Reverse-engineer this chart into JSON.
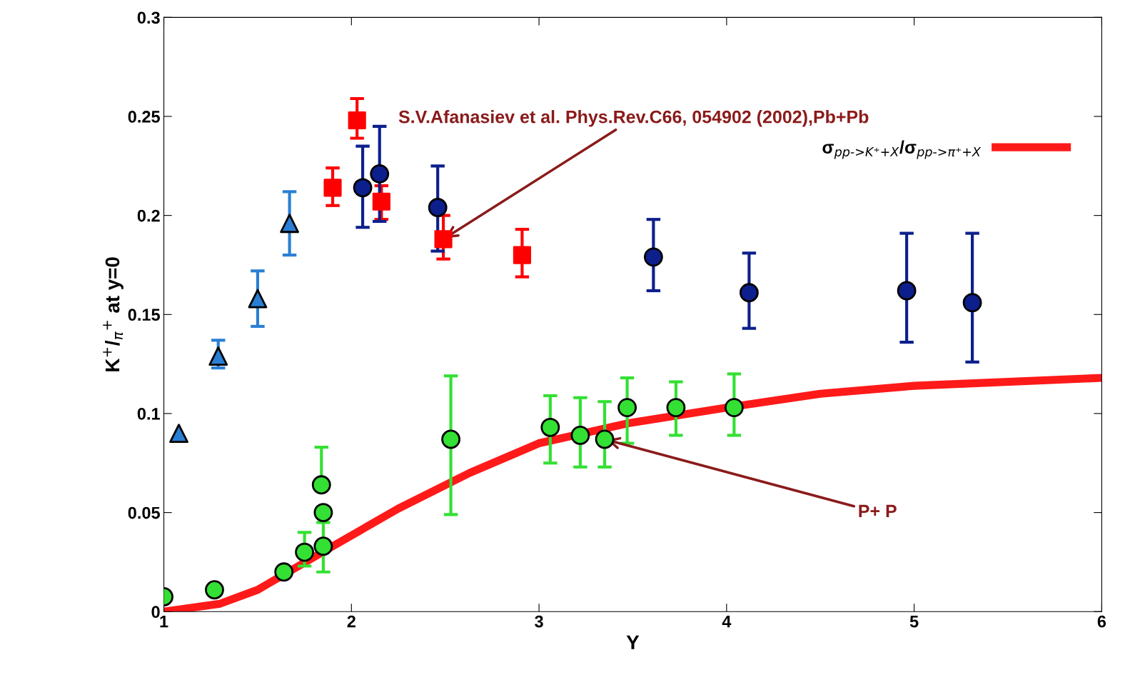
{
  "chart_data": {
    "type": "scatter",
    "xlabel": "Y",
    "ylabel": "K$^{+}$/$_{π}$$^{+}$ at y=0",
    "xlim": [
      1,
      6
    ],
    "xticks": [
      1,
      2,
      3,
      4,
      5,
      6
    ],
    "ylim": [
      0,
      0.3
    ],
    "yticks": [
      {
        "value": 0,
        "label": "0"
      },
      {
        "value": 0.05,
        "label": "0.05"
      },
      {
        "value": 0.1,
        "label": "0.1"
      },
      {
        "value": 0.15,
        "label": "0.15"
      },
      {
        "value": 0.2,
        "label": "0.2"
      },
      {
        "value": 0.25,
        "label": "0.25"
      },
      {
        "value": 0.3,
        "label": "0.3"
      }
    ],
    "grid": false,
    "legend": "top right",
    "series": [
      {
        "type": "line",
        "name": "σ$_{pp->K⁺+X}$/σ$_{pp->π⁺+X}$",
        "color": "#ff1a1a",
        "marker": "none",
        "line_style": "solid",
        "x": [
          1.0,
          1.3,
          1.5,
          1.9,
          2.25,
          2.63,
          3.0,
          3.47,
          4.0,
          4.5,
          5.0,
          6.0
        ],
        "values": [
          0.0,
          0.004,
          0.011,
          0.033,
          0.052,
          0.07,
          0.085,
          0.095,
          0.103,
          0.11,
          0.114,
          0.118
        ]
      },
      {
        "color": "#2a7fd4",
        "marker": "triangle",
        "x": [
          1.08,
          1.29,
          1.5,
          1.67
        ],
        "values": [
          0.09,
          0.129,
          0.158,
          0.196
        ],
        "errors": [
          null,
          [
            0.123,
            0.137
          ],
          [
            0.144,
            0.172
          ],
          [
            0.18,
            0.212
          ]
        ]
      },
      {
        "color": "#ff0000",
        "marker": "square",
        "x": [
          1.9,
          2.03,
          2.16,
          2.49,
          2.91
        ],
        "values": [
          0.214,
          0.248,
          0.207,
          0.188,
          0.18
        ],
        "errors": [
          [
            0.205,
            0.224
          ],
          [
            0.239,
            0.259
          ],
          [
            0.198,
            0.215
          ],
          [
            0.178,
            0.2
          ],
          [
            0.169,
            0.193
          ]
        ]
      },
      {
        "color": "#0d1f8c",
        "marker": "circle",
        "x": [
          2.06,
          2.15,
          2.46,
          3.61,
          4.12,
          4.96,
          5.31
        ],
        "values": [
          0.214,
          0.221,
          0.204,
          0.179,
          0.161,
          0.162,
          0.156
        ],
        "errors": [
          [
            0.194,
            0.235
          ],
          [
            0.197,
            0.245
          ],
          [
            0.182,
            0.225
          ],
          [
            0.162,
            0.198
          ],
          [
            0.143,
            0.181
          ],
          [
            0.136,
            0.191
          ],
          [
            0.126,
            0.191
          ]
        ]
      },
      {
        "color": "#33e033",
        "marker": "circle",
        "x": [
          1.0,
          1.27,
          1.64,
          1.75,
          1.85,
          1.85,
          1.84,
          2.53,
          3.06,
          3.22,
          3.35,
          3.47,
          3.73,
          4.04
        ],
        "values": [
          0.0075,
          0.011,
          0.02,
          0.03,
          0.033,
          0.05,
          0.064,
          0.087,
          0.093,
          0.089,
          0.087,
          0.103,
          0.103,
          0.103
        ],
        "errors": [
          null,
          null,
          null,
          [
            0.023,
            0.04
          ],
          [
            0.02,
            0.045
          ],
          null,
          [
            0.064,
            0.083
          ],
          [
            0.049,
            0.119
          ],
          [
            0.075,
            0.109
          ],
          [
            0.073,
            0.108
          ],
          [
            0.073,
            0.106
          ],
          [
            0.085,
            0.118
          ],
          [
            0.089,
            0.116
          ],
          [
            0.089,
            0.12
          ]
        ]
      }
    ],
    "annotations": [
      {
        "text": "S.V.Afanasiev et al. Phys.Rev.C66, 054902 (2002),Pb+Pb",
        "x": 2.49,
        "y": 0.188
      },
      {
        "text": "P+ P",
        "x": 3.35,
        "y": 0.087
      }
    ]
  }
}
